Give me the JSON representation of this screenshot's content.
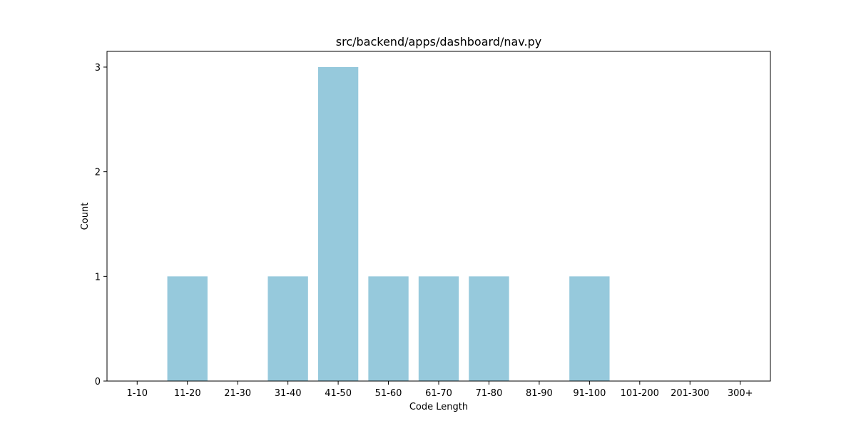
{
  "chart_data": {
    "type": "bar",
    "title": "src/backend/apps/dashboard/nav.py",
    "xlabel": "Code Length",
    "ylabel": "Count",
    "categories": [
      "1-10",
      "11-20",
      "21-30",
      "31-40",
      "41-50",
      "51-60",
      "61-70",
      "71-80",
      "81-90",
      "91-100",
      "101-200",
      "201-300",
      "300+"
    ],
    "values": [
      0,
      1,
      0,
      1,
      3,
      1,
      1,
      1,
      0,
      1,
      0,
      0,
      0
    ],
    "ylim": [
      0,
      3.15
    ],
    "yticks": [
      0,
      1,
      2,
      3
    ],
    "grid": false,
    "bar_color": "#96c9dc"
  }
}
